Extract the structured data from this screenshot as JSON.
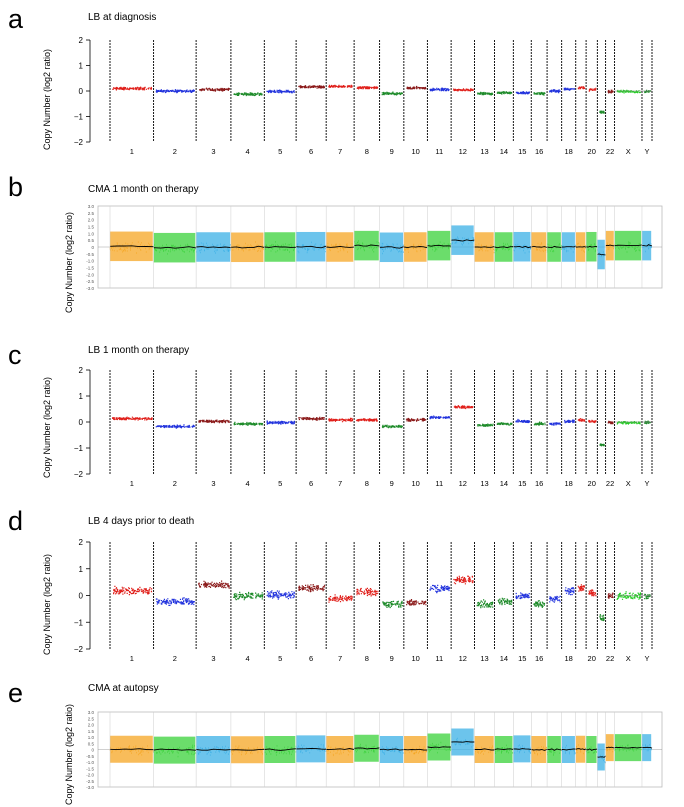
{
  "figure": {
    "panels": [
      {
        "letter": "a",
        "title": "LB at diagnosis",
        "type": "LB",
        "ylabel": "Copy Number (log2 ratio)",
        "yticks": [
          "2",
          "1",
          "0",
          "−1",
          "−2"
        ],
        "segments": [
          0.12,
          0.02,
          0.08,
          -0.1,
          0.0,
          0.18,
          0.2,
          0.15,
          -0.08,
          0.14,
          0.08,
          0.07,
          -0.08,
          -0.05,
          -0.05,
          -0.08,
          0.02,
          0.1,
          0.15,
          0.07,
          -0.8,
          0.0
        ]
      },
      {
        "letter": "b",
        "title": "CMA 1 month on therapy",
        "type": "CMA",
        "ylabel": "Copy Number (log2 ratio)",
        "yticks": [
          "3.0",
          "2.5",
          "2.0",
          "1.5",
          "1.0",
          "0.5",
          "0",
          "-0.5",
          "-1.0",
          "-1.5",
          "-2.0",
          "-2.5",
          "-3.0"
        ],
        "segments": [
          0.05,
          -0.05,
          0.0,
          -0.02,
          0.0,
          0.02,
          0.0,
          0.1,
          -0.02,
          0.0,
          0.1,
          0.5,
          0.0,
          0.0,
          0.02,
          0.0,
          0.0,
          0.0,
          0.0,
          0.02,
          -0.55,
          0.1
        ]
      },
      {
        "letter": "c",
        "title": "LB 1 month on therapy",
        "type": "LB",
        "ylabel": "Copy Number (log2 ratio)",
        "yticks": [
          "2",
          "1",
          "0",
          "−1",
          "−2"
        ],
        "segments": [
          0.15,
          -0.15,
          0.05,
          -0.05,
          0.0,
          0.15,
          0.1,
          0.1,
          -0.15,
          0.1,
          0.2,
          0.6,
          -0.1,
          -0.05,
          0.05,
          -0.05,
          -0.05,
          0.05,
          0.1,
          0.05,
          -0.85,
          0.0
        ]
      },
      {
        "letter": "d",
        "title": "LB 4 days prior to death",
        "type": "LB",
        "ylabel": "Copy Number (log2 ratio)",
        "yticks": [
          "2",
          "1",
          "0",
          "−1",
          "−2"
        ],
        "segments": [
          0.2,
          -0.2,
          0.4,
          0.0,
          0.05,
          0.3,
          -0.1,
          0.15,
          -0.3,
          -0.25,
          0.3,
          0.6,
          -0.3,
          -0.2,
          0.0,
          -0.3,
          -0.1,
          0.2,
          0.3,
          0.1,
          -0.8,
          0.0
        ]
      },
      {
        "letter": "e",
        "title": "CMA at autopsy",
        "type": "CMA",
        "ylabel": "Copy Number (log2 ratio)",
        "yticks": [
          "3.0",
          "2.5",
          "2.0",
          "1.5",
          "1.0",
          "0.5",
          "0",
          "-0.5",
          "-1.0",
          "-1.5",
          "-2.0",
          "-2.5",
          "-3.0"
        ],
        "segments": [
          0.02,
          -0.05,
          0.0,
          -0.02,
          0.0,
          0.05,
          0.0,
          0.1,
          0.0,
          0.0,
          0.2,
          0.6,
          0.0,
          0.0,
          0.05,
          0.0,
          0.0,
          0.0,
          0.02,
          0.0,
          -0.6,
          0.15
        ]
      }
    ],
    "lb_chrom_labels": [
      "1",
      "2",
      "3",
      "4",
      "5",
      "6",
      "7",
      "8",
      "9",
      "10",
      "11",
      "12",
      "13",
      "14",
      "15",
      "16",
      "",
      "18",
      "",
      "20",
      "",
      "22",
      "X",
      "Y"
    ],
    "colors": {
      "red": "#e0201b",
      "darkred": "#8b1a1a",
      "blue": "#2233dd",
      "green": "#1e8b2a",
      "lightgreen": "#22cc22",
      "orange": "#f5a623",
      "cyan": "#3bb0e6",
      "cmagreen": "#3ad13a",
      "line": "#000000",
      "grid": "#999999"
    }
  }
}
